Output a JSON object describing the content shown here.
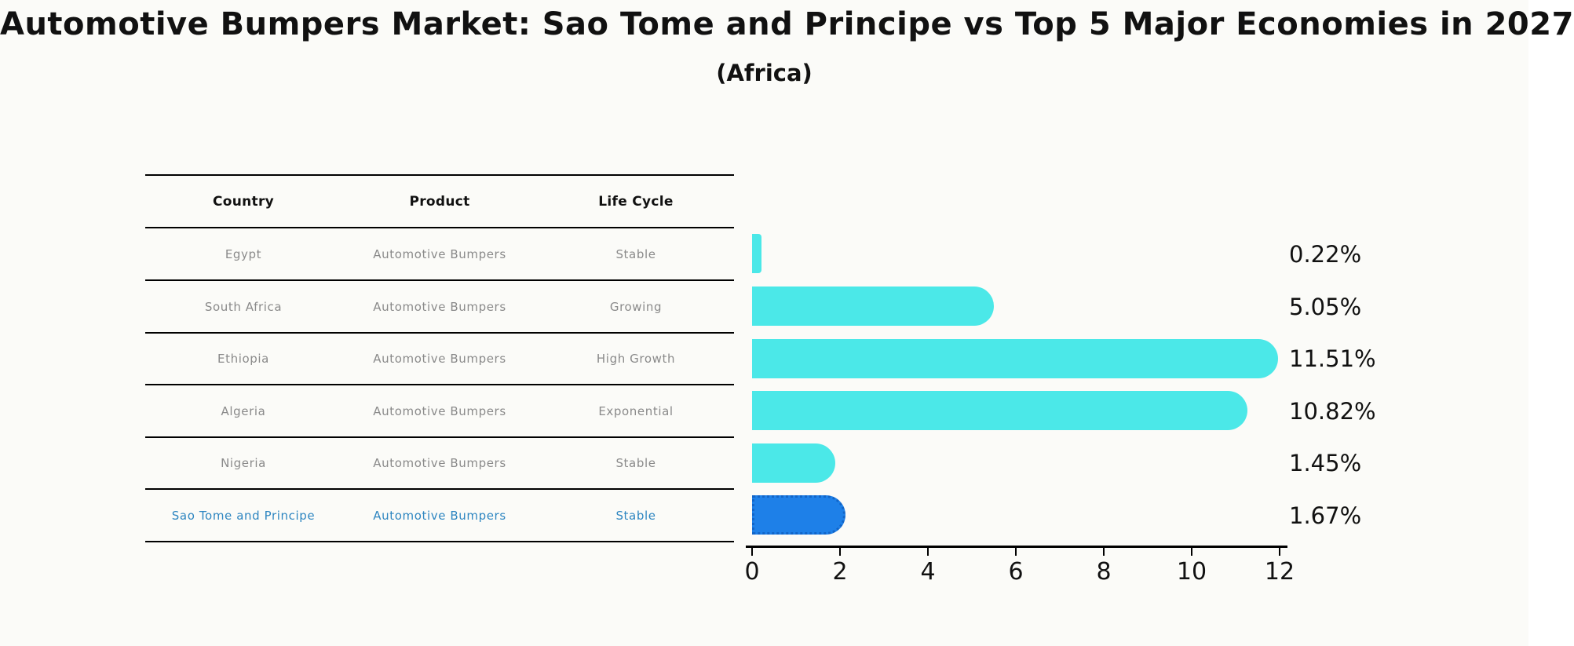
{
  "header": {
    "title": "Automotive Bumpers Market: Sao Tome and Principe vs Top 5 Major Economies in 2027",
    "subtitle": "(Africa)"
  },
  "table": {
    "columns": [
      "Country",
      "Product",
      "Life Cycle"
    ],
    "rows": [
      {
        "country": "Egypt",
        "product": "Automotive Bumpers",
        "life_cycle": "Stable"
      },
      {
        "country": "South Africa",
        "product": "Automotive Bumpers",
        "life_cycle": "Growing"
      },
      {
        "country": "Ethiopia",
        "product": "Automotive Bumpers",
        "life_cycle": "High Growth"
      },
      {
        "country": "Algeria",
        "product": "Automotive Bumpers",
        "life_cycle": "Exponential"
      },
      {
        "country": "Nigeria",
        "product": "Automotive Bumpers",
        "life_cycle": "Stable"
      },
      {
        "country": "Sao Tome and Principe",
        "product": "Automotive Bumpers",
        "life_cycle": "Stable"
      }
    ],
    "highlighted_row": "Sao Tome and Principe"
  },
  "chart_data": {
    "type": "bar",
    "orientation": "horizontal",
    "title": "Automotive Bumpers Market: Sao Tome and Principe vs Top 5 Major Economies in 2027 (Africa)",
    "categories": [
      "Egypt",
      "South Africa",
      "Ethiopia",
      "Algeria",
      "Nigeria",
      "Sao Tome and Principe"
    ],
    "values": [
      0.22,
      5.05,
      11.51,
      10.82,
      1.45,
      1.67
    ],
    "value_labels": [
      "0.22%",
      "5.05%",
      "11.51%",
      "10.82%",
      "1.45%",
      "1.67%"
    ],
    "xlim": [
      0,
      12
    ],
    "x_ticks": [
      0,
      2,
      4,
      6,
      8,
      10,
      12
    ],
    "grid": false,
    "legend": false,
    "value_label_position": "right-outside",
    "bar_color": "#4be8e8",
    "highlight_bar_color": "#1e80e8",
    "highlight_index": 5
  },
  "colors": {
    "background": "#fbfbf8",
    "table_line": "#000000",
    "row_text": "#8a8a8a",
    "highlight_text": "#2e86c1",
    "axis_text": "#111111"
  }
}
